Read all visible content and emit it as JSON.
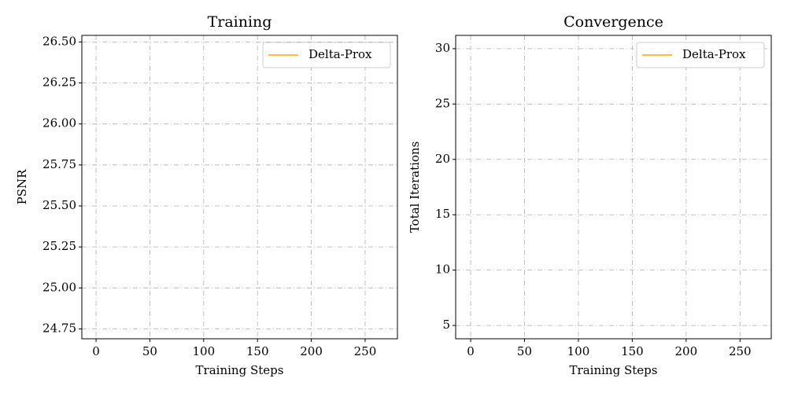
{
  "chart_data": [
    {
      "type": "line",
      "title": "Training",
      "xlabel": "Training Steps",
      "ylabel": "PSNR",
      "x": [],
      "series": [
        {
          "name": "Delta-Prox",
          "color": "#ffa500",
          "values": []
        }
      ],
      "xlim": [
        -13.2,
        280
      ],
      "xticks": [
        0,
        50,
        100,
        150,
        200,
        250
      ],
      "ylim": [
        24.69,
        26.54
      ],
      "yticks": [
        {
          "value": 24.75,
          "label": "24.75"
        },
        {
          "value": 25,
          "label": "25.00"
        },
        25.25,
        {
          "value": 25.5,
          "label": "25.50"
        },
        25.75,
        {
          "value": 26,
          "label": "26.00"
        },
        26.25,
        {
          "value": 26.5,
          "label": "26.50"
        }
      ],
      "grid": true,
      "legend": "upper right"
    },
    {
      "type": "line",
      "title": "Convergence",
      "xlabel": "Training Steps",
      "ylabel": "Total Iterations",
      "x": [],
      "series": [
        {
          "name": "Delta-Prox",
          "color": "#ffa500",
          "values": []
        }
      ],
      "xlim": [
        -13.9,
        279
      ],
      "xticks": [
        0,
        50,
        100,
        150,
        200,
        250
      ],
      "ylim": [
        3.8,
        31.2
      ],
      "yticks": [
        5,
        10,
        15,
        20,
        25,
        30
      ],
      "grid": true,
      "legend": "upper right"
    }
  ]
}
